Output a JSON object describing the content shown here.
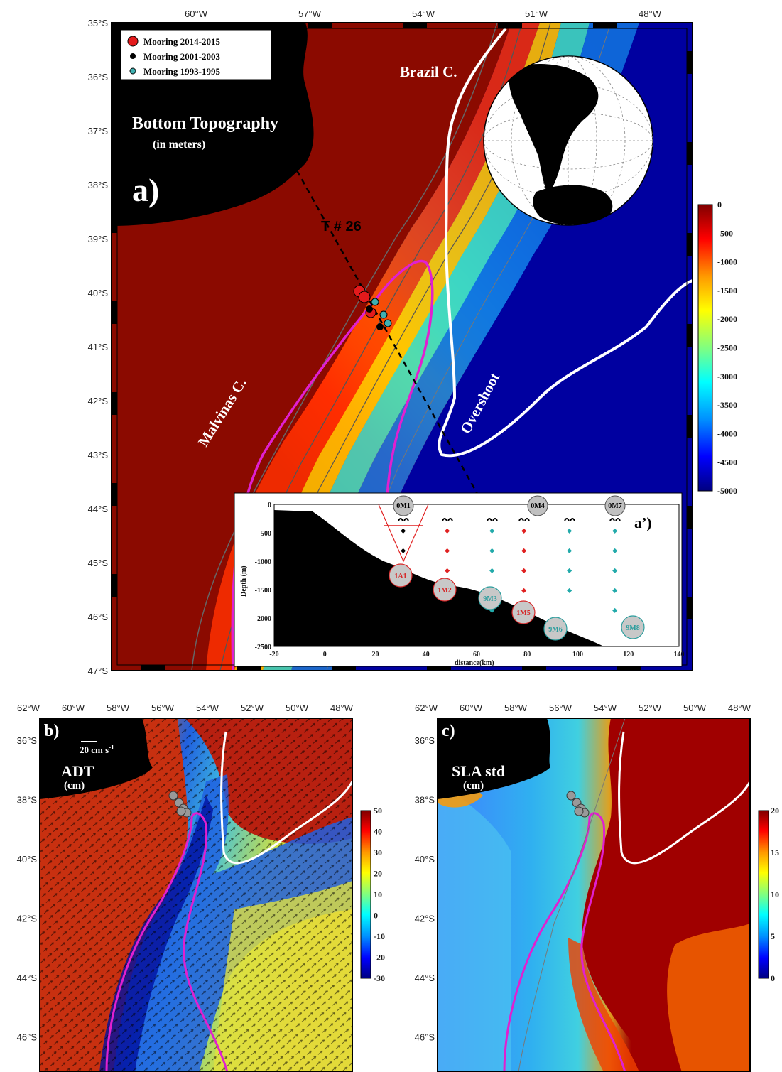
{
  "panel_a": {
    "lat_ticks": [
      "35°S",
      "36°S",
      "37°S",
      "38°S",
      "39°S",
      "40°S",
      "41°S",
      "42°S",
      "43°S",
      "44°S",
      "45°S",
      "46°S",
      "47°S"
    ],
    "lon_ticks": [
      "60°W",
      "57°W",
      "54°W",
      "51°W",
      "48°W"
    ],
    "legend": [
      {
        "label": "Mooring 2014-2015",
        "color": "#e41a1c"
      },
      {
        "label": "Mooring 2001-2003",
        "color": "#000000"
      },
      {
        "label": "Mooring 1993-1995",
        "color": "#3fb0b0"
      }
    ],
    "title": "Bottom Topography",
    "subtitle": "(in meters)",
    "panel_label": "a)",
    "transect_label": "T # 26",
    "brazil_label": "Brazil C.",
    "malvinas_label": "Malvinas C.",
    "overshoot_label": "Overshoot",
    "colorbar_ticks": [
      "0",
      "-500",
      "-1000",
      "-1500",
      "-2000",
      "-2500",
      "-3000",
      "-3500",
      "-4000",
      "-4500",
      "-5000"
    ]
  },
  "inset": {
    "panel_label": "a’)",
    "xlabel": "distance(km)",
    "ylabel": "Depth (m)",
    "x_ticks": [
      "-20",
      "0",
      "20",
      "40",
      "60",
      "80",
      "100",
      "120",
      "140"
    ],
    "y_ticks": [
      "0",
      "-500",
      "-1000",
      "-1500",
      "-2000",
      "-2500"
    ],
    "top_moorings": [
      "0M1",
      "0M4",
      "0M7"
    ],
    "bottom_moorings": [
      {
        "label": "1A1",
        "color": "#d62728"
      },
      {
        "label": "1M2",
        "color": "#d62728"
      },
      {
        "label": "9M3",
        "color": "#2a9d9d"
      },
      {
        "label": "1M5",
        "color": "#d62728"
      },
      {
        "label": "9M6",
        "color": "#2a9d9d"
      },
      {
        "label": "9M8",
        "color": "#2a9d9d"
      }
    ]
  },
  "panel_b": {
    "panel_label": "b)",
    "title": "ADT",
    "unit": "(cm)",
    "scale_label": "20 cm s",
    "scale_sup": "-1",
    "lat_ticks": [
      "36°S",
      "38°S",
      "40°S",
      "42°S",
      "44°S",
      "46°S"
    ],
    "lon_ticks": [
      "62°W",
      "60°W",
      "58°W",
      "56°W",
      "54°W",
      "52°W",
      "50°W",
      "48°W"
    ],
    "colorbar_ticks": [
      "50",
      "40",
      "30",
      "20",
      "10",
      "0",
      "-10",
      "-20",
      "-30"
    ]
  },
  "panel_c": {
    "panel_label": "c)",
    "title": "SLA std",
    "unit": "(cm)",
    "lat_ticks": [
      "36°S",
      "38°S",
      "40°S",
      "42°S",
      "44°S",
      "46°S"
    ],
    "lon_ticks": [
      "62°W",
      "60°W",
      "58°W",
      "56°W",
      "54°W",
      "52°W",
      "50°W",
      "48°W"
    ],
    "colorbar_ticks": [
      "20",
      "15",
      "10",
      "5",
      "0"
    ]
  },
  "colors": {
    "land": "#000000",
    "shelf": "#8b0a00",
    "deep": "#00008b",
    "brazil_front": "#ffffff",
    "malvinas_front": "#e020d0"
  }
}
